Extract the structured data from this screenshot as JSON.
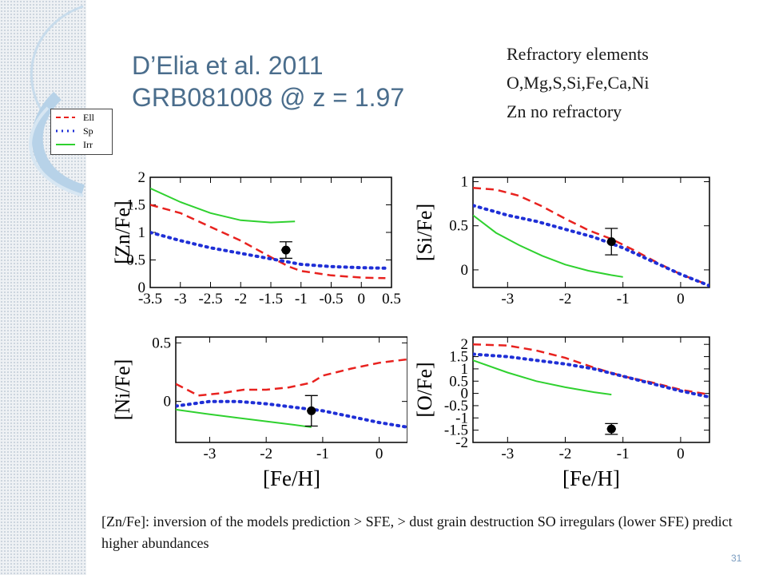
{
  "slide": {
    "title_line1": "D’Elia et al. 2011",
    "title_line2": "GRB081008 @ z = 1.97",
    "notes": [
      "Refractory elements",
      "O,Mg,S,Si,Fe,Ca,Ni",
      "Zn no refractory"
    ],
    "caption": "[Zn/Fe]: inversion of the models prediction > SFE, > dust grain destruction  SO irregulars (lower SFE) predict higher abundances",
    "page_number": "31"
  },
  "legend": {
    "entries": [
      {
        "label": "Ell",
        "color": "#e8221f",
        "style": "dashed"
      },
      {
        "label": "Sp",
        "color": "#1f2fd6",
        "style": "dotted"
      },
      {
        "label": "Irr",
        "color": "#2fd12f",
        "style": "solid"
      }
    ]
  },
  "colors": {
    "ell": "#e8221f",
    "sp": "#1f2fd6",
    "irr": "#2fd12f",
    "title": "#4a6d8c",
    "page_number": "#7a9cc0"
  },
  "chart_data": [
    {
      "type": "line",
      "ylabel": "[Zn/Fe]",
      "xlabel": "",
      "xlim": [
        -3.5,
        0.5
      ],
      "ylim": [
        0,
        2
      ],
      "xticks": [
        "-3.5",
        "-3",
        "-2.5",
        "-2",
        "-1.5",
        "-1",
        "-0.5",
        "0",
        "0.5"
      ],
      "yticks": [
        "0",
        "0.5",
        "1",
        "1.5",
        "2"
      ],
      "series": [
        {
          "name": "Ell",
          "x": [
            -3.5,
            -3.0,
            -2.5,
            -2.0,
            -1.5,
            -1.2,
            -1.0,
            -0.5,
            0.0,
            0.4
          ],
          "y": [
            1.5,
            1.35,
            1.1,
            0.85,
            0.55,
            0.38,
            0.3,
            0.22,
            0.18,
            0.17
          ]
        },
        {
          "name": "Sp",
          "x": [
            -3.5,
            -3.0,
            -2.5,
            -2.0,
            -1.5,
            -1.0,
            -0.5,
            0.0,
            0.4
          ],
          "y": [
            1.0,
            0.85,
            0.72,
            0.62,
            0.52,
            0.42,
            0.38,
            0.36,
            0.35
          ]
        },
        {
          "name": "Irr",
          "x": [
            -3.5,
            -3.0,
            -2.5,
            -2.0,
            -1.5,
            -1.1
          ],
          "y": [
            1.8,
            1.55,
            1.35,
            1.22,
            1.18,
            1.2
          ]
        }
      ],
      "observation": {
        "x": -1.25,
        "y": 0.68,
        "yerr": 0.15,
        "xerr": 0.08
      }
    },
    {
      "type": "line",
      "ylabel": "[Si/Fe]",
      "xlabel": "",
      "xlim": [
        -3.6,
        0.5
      ],
      "ylim": [
        -0.2,
        1.05
      ],
      "xticks": [
        "-3",
        "-2",
        "-1",
        "0"
      ],
      "yticks": [
        "0",
        "0.5",
        "1"
      ],
      "series": [
        {
          "name": "Ell",
          "x": [
            -3.6,
            -3.2,
            -2.8,
            -2.4,
            -2.0,
            -1.6,
            -1.2,
            -0.8,
            -0.4,
            0.0,
            0.4
          ],
          "y": [
            0.93,
            0.91,
            0.84,
            0.72,
            0.58,
            0.45,
            0.35,
            0.22,
            0.08,
            -0.05,
            -0.15
          ]
        },
        {
          "name": "Sp",
          "x": [
            -3.6,
            -3.0,
            -2.5,
            -2.0,
            -1.5,
            -1.0,
            -0.5,
            0.0,
            0.5
          ],
          "y": [
            0.73,
            0.62,
            0.55,
            0.46,
            0.37,
            0.25,
            0.1,
            -0.05,
            -0.18
          ]
        },
        {
          "name": "Irr",
          "x": [
            -3.6,
            -3.2,
            -2.8,
            -2.4,
            -2.0,
            -1.6,
            -1.2,
            -1.0
          ],
          "y": [
            0.62,
            0.42,
            0.28,
            0.16,
            0.06,
            -0.01,
            -0.06,
            -0.08
          ]
        }
      ],
      "observation": {
        "x": -1.2,
        "y": 0.32,
        "yerr": 0.15,
        "xerr": 0.08
      }
    },
    {
      "type": "line",
      "ylabel": "[Ni/Fe]",
      "xlabel": "[Fe/H]",
      "xlim": [
        -3.6,
        0.5
      ],
      "ylim": [
        -0.35,
        0.55
      ],
      "xticks": [
        "-3",
        "-2",
        "-1",
        "0"
      ],
      "yticks": [
        "0",
        "0.5"
      ],
      "series": [
        {
          "name": "Ell",
          "x": [
            -3.6,
            -3.2,
            -2.8,
            -2.4,
            -2.0,
            -1.6,
            -1.2,
            -1.0,
            -0.5,
            0.0,
            0.5
          ],
          "y": [
            0.15,
            0.05,
            0.07,
            0.1,
            0.1,
            0.12,
            0.16,
            0.22,
            0.28,
            0.33,
            0.36
          ]
        },
        {
          "name": "Sp",
          "x": [
            -3.6,
            -3.0,
            -2.5,
            -2.0,
            -1.5,
            -1.0,
            -0.5,
            0.0,
            0.5
          ],
          "y": [
            -0.04,
            0.0,
            0.0,
            -0.02,
            -0.05,
            -0.08,
            -0.13,
            -0.18,
            -0.22
          ]
        },
        {
          "name": "Irr",
          "x": [
            -3.6,
            -3.0,
            -2.5,
            -2.0,
            -1.5,
            -1.2
          ],
          "y": [
            -0.07,
            -0.11,
            -0.14,
            -0.17,
            -0.2,
            -0.22
          ]
        }
      ],
      "observation": {
        "x": -1.2,
        "y": -0.08,
        "yerr": 0.13,
        "xerr": 0.08
      }
    },
    {
      "type": "line",
      "ylabel": "[O/Fe]",
      "xlabel": "[Fe/H]",
      "xlim": [
        -3.6,
        0.5
      ],
      "ylim": [
        -2,
        2.3
      ],
      "xticks": [
        "-3",
        "-2",
        "-1",
        "0"
      ],
      "yticks": [
        "-2",
        "-1.5",
        "-1",
        "-0.5",
        "0",
        "0.5",
        "1",
        "1.5",
        "2"
      ],
      "series": [
        {
          "name": "Ell",
          "x": [
            -3.6,
            -3.0,
            -2.5,
            -2.0,
            -1.5,
            -1.0,
            -0.5,
            0.0,
            0.5
          ],
          "y": [
            2.0,
            1.95,
            1.75,
            1.45,
            1.05,
            0.7,
            0.45,
            0.15,
            -0.05
          ]
        },
        {
          "name": "Sp",
          "x": [
            -3.6,
            -3.0,
            -2.5,
            -2.0,
            -1.5,
            -1.0,
            -0.5,
            0.0,
            0.5
          ],
          "y": [
            1.6,
            1.5,
            1.35,
            1.2,
            1.0,
            0.7,
            0.4,
            0.1,
            -0.15
          ]
        },
        {
          "name": "Irr",
          "x": [
            -3.6,
            -3.0,
            -2.5,
            -2.0,
            -1.5,
            -1.2
          ],
          "y": [
            1.35,
            0.85,
            0.5,
            0.25,
            0.05,
            -0.05
          ]
        }
      ],
      "observation": {
        "x": -1.2,
        "y": -1.45,
        "yerr": 0.22,
        "xerr": 0.08
      }
    }
  ]
}
